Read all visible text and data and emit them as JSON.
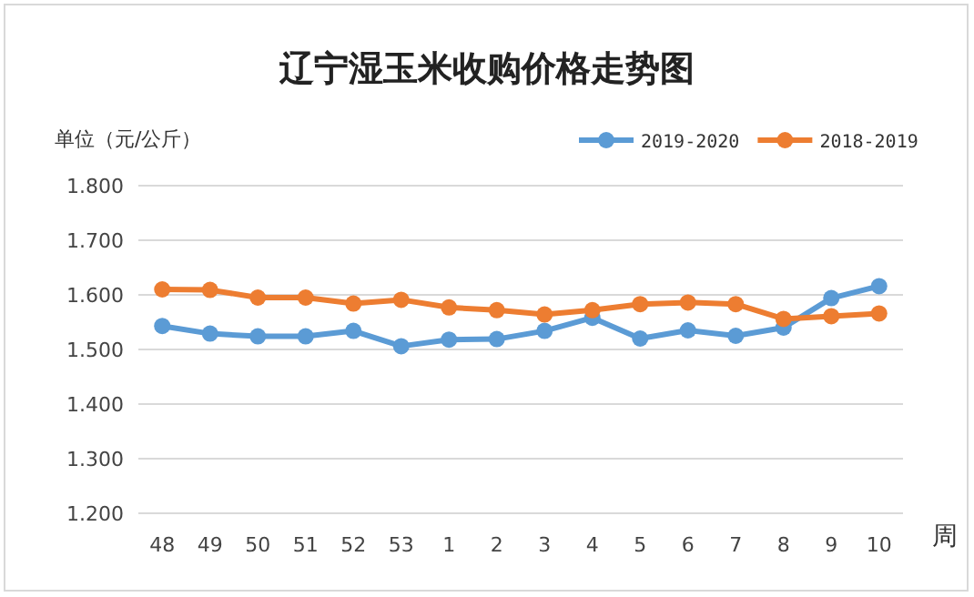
{
  "chart_data": {
    "type": "line",
    "title": "辽宁湿玉米收购价格走势图",
    "ylabel": "单位（元/公斤）",
    "xlabel": "周",
    "categories": [
      "48",
      "49",
      "50",
      "51",
      "52",
      "53",
      "1",
      "2",
      "3",
      "4",
      "5",
      "6",
      "7",
      "8",
      "9",
      "10"
    ],
    "series": [
      {
        "name": "2019-2020",
        "color": "#5b9bd5",
        "values": [
          1.543,
          1.529,
          1.524,
          1.524,
          1.534,
          1.506,
          1.518,
          1.519,
          1.534,
          1.558,
          1.52,
          1.535,
          1.525,
          1.54,
          1.594,
          1.616
        ]
      },
      {
        "name": "2018-2019",
        "color": "#ed7d31",
        "values": [
          1.61,
          1.609,
          1.595,
          1.595,
          1.584,
          1.591,
          1.577,
          1.572,
          1.564,
          1.572,
          1.583,
          1.586,
          1.583,
          1.556,
          1.561,
          1.566
        ]
      }
    ],
    "ylim": [
      1.2,
      1.8
    ],
    "yticks": [
      {
        "value": 1.2,
        "label": "1.200"
      },
      {
        "value": 1.3,
        "label": "1.300"
      },
      {
        "value": 1.4,
        "label": "1.400"
      },
      {
        "value": 1.5,
        "label": "1.500"
      },
      {
        "value": 1.6,
        "label": "1.600"
      },
      {
        "value": 1.7,
        "label": "1.700"
      },
      {
        "value": 1.8,
        "label": "1.800"
      }
    ],
    "grid": "y",
    "legend": "top right",
    "marker": "circle",
    "line_style": "solid"
  }
}
